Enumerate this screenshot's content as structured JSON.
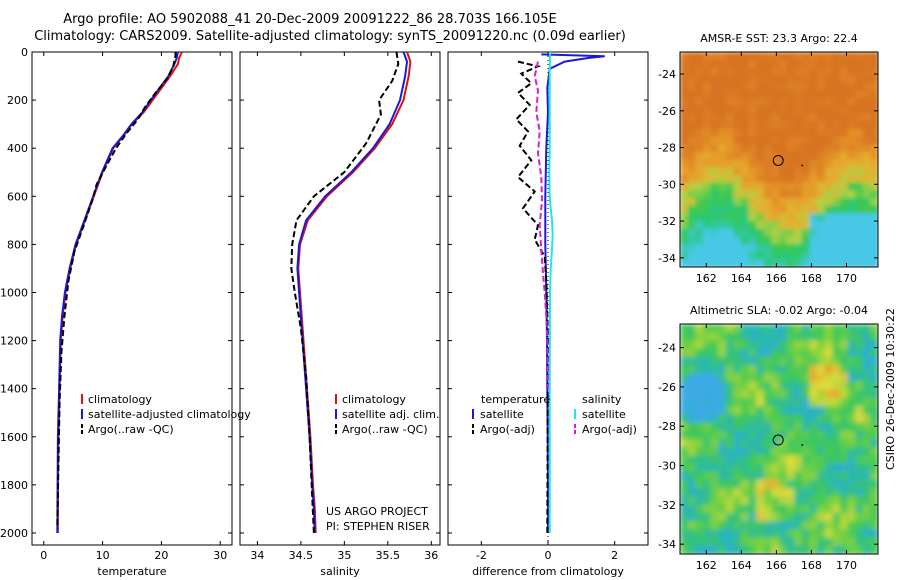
{
  "title": {
    "line1": "Argo profile: AO 5902088_41 20-Dec-2009 20091222_86 28.703S 166.105E",
    "line2": "Climatology: CARS2009. Satellite-adjusted climatology: synTS_20091220.nc (0.09d earlier)"
  },
  "footer": {
    "project": "US ARGO PROJECT",
    "pi": "PI: STEPHEN RISER",
    "stamp": "CSIRO 26-Dec-2009 10:30:22"
  },
  "colors": {
    "red": "#dd1111",
    "blue": "#1a1ad6",
    "black": "#000000",
    "cyan": "#22e4ec",
    "magenta": "#d41fd4"
  },
  "chart_data": [
    {
      "id": "temperature",
      "type": "line",
      "xlabel": "temperature",
      "ylabel": "",
      "xlim": [
        -2,
        32
      ],
      "ylim": [
        2050,
        0
      ],
      "xticks": [
        0,
        10,
        20,
        30
      ],
      "yticks": [
        0,
        200,
        400,
        600,
        800,
        1000,
        1200,
        1400,
        1600,
        1800,
        2000
      ],
      "legend": {
        "position": "lower-center",
        "labels": [
          "climatology",
          "satellite-adjusted climatology",
          "Argo(..raw -QC)"
        ]
      },
      "series": [
        {
          "name": "climatology",
          "color": "red",
          "dash": "",
          "x": [
            23.5,
            23.0,
            22.8,
            21.5,
            20.0,
            18.5,
            17.0,
            15.0,
            13.5,
            11.8,
            10.0,
            8.5,
            7.0,
            5.5,
            4.5,
            3.7,
            3.2,
            2.9,
            2.7,
            2.5,
            2.4,
            2.4
          ],
          "depth": [
            0,
            25,
            50,
            100,
            150,
            200,
            250,
            300,
            350,
            400,
            500,
            600,
            700,
            800,
            900,
            1000,
            1100,
            1200,
            1400,
            1600,
            1800,
            2000
          ]
        },
        {
          "name": "satellite-adjusted climatology",
          "color": "blue",
          "dash": "",
          "x": [
            22.8,
            22.6,
            22.2,
            21.2,
            19.7,
            18.2,
            16.8,
            14.9,
            13.4,
            11.7,
            9.9,
            8.4,
            6.9,
            5.4,
            4.4,
            3.6,
            3.1,
            2.8,
            2.6,
            2.4,
            2.35,
            2.3
          ],
          "depth": [
            0,
            25,
            50,
            100,
            150,
            200,
            250,
            300,
            350,
            400,
            500,
            600,
            700,
            800,
            900,
            1000,
            1100,
            1200,
            1400,
            1600,
            1800,
            2000
          ]
        },
        {
          "name": "Argo(..raw -QC)",
          "color": "black",
          "dash": "6,3",
          "x": [
            22.4,
            22.4,
            22.3,
            22.0,
            21.0,
            19.0,
            17.2,
            16.0,
            14.0,
            12.3,
            10.5,
            9.0,
            8.2,
            6.8,
            5.2,
            4.2,
            3.5,
            3.0,
            2.7,
            2.5,
            2.3
          ],
          "depth": [
            0,
            15,
            30,
            60,
            110,
            170,
            230,
            280,
            340,
            400,
            480,
            550,
            620,
            720,
            830,
            950,
            1100,
            1250,
            1450,
            1700,
            1980
          ]
        }
      ]
    },
    {
      "id": "salinity",
      "type": "line",
      "xlabel": "salinity",
      "ylabel": "",
      "xlim": [
        33.8,
        36.1
      ],
      "ylim": [
        2050,
        0
      ],
      "xticks": [
        34,
        34.5,
        35,
        35.5,
        36
      ],
      "legend": {
        "position": "lower-right",
        "labels": [
          "climatology",
          "satellite adj. clim.",
          "Argo(..raw -QC)"
        ]
      },
      "series": [
        {
          "name": "climatology",
          "color": "red",
          "dash": "",
          "x": [
            35.72,
            35.76,
            35.74,
            35.68,
            35.55,
            35.35,
            35.1,
            34.8,
            34.58,
            34.49,
            34.47,
            34.49,
            34.53,
            34.57,
            34.61,
            34.64,
            34.66,
            34.67
          ],
          "depth": [
            0,
            40,
            100,
            200,
            300,
            400,
            500,
            600,
            700,
            800,
            900,
            1000,
            1200,
            1400,
            1600,
            1800,
            1900,
            2000
          ]
        },
        {
          "name": "satellite adj. clim.",
          "color": "blue",
          "dash": "",
          "x": [
            35.68,
            35.72,
            35.7,
            35.64,
            35.52,
            35.33,
            35.08,
            34.78,
            34.56,
            34.48,
            34.46,
            34.48,
            34.52,
            34.56,
            34.6,
            34.63,
            34.65,
            34.66
          ],
          "depth": [
            0,
            40,
            100,
            200,
            300,
            400,
            500,
            600,
            700,
            800,
            900,
            1000,
            1200,
            1400,
            1600,
            1800,
            1900,
            2000
          ]
        },
        {
          "name": "Argo(..raw -QC)",
          "color": "black",
          "dash": "6,3",
          "x": [
            35.6,
            35.62,
            35.55,
            35.4,
            35.42,
            35.25,
            35.0,
            34.65,
            34.45,
            34.4,
            34.39,
            34.43,
            34.5,
            34.56,
            34.6,
            34.63,
            34.65
          ],
          "depth": [
            0,
            50,
            120,
            200,
            260,
            380,
            500,
            600,
            700,
            800,
            900,
            1000,
            1150,
            1350,
            1600,
            1850,
            2000
          ]
        }
      ]
    },
    {
      "id": "difference",
      "type": "line",
      "xlabel": "difference from climatology",
      "ylabel": "",
      "xlim": [
        -3.0,
        3.0
      ],
      "ylim": [
        2050,
        0
      ],
      "xticks": [
        -2,
        0,
        2
      ],
      "legend": {
        "position": "lower-center",
        "groups": [
          "temperature",
          "salinity"
        ],
        "labels": [
          "satellite",
          "Argo(-adj)",
          "satellite",
          "Argo(-adj)"
        ]
      },
      "series": [
        {
          "name": "temperature satellite",
          "color": "blue",
          "dash": "",
          "x": [
            -0.2,
            1.7,
            1.2,
            0.5,
            0.05,
            -0.02,
            0.0,
            -0.05,
            -0.08,
            -0.08,
            -0.05,
            -0.03,
            -0.02,
            -0.01,
            0.0,
            0.0
          ],
          "depth": [
            10,
            18,
            25,
            40,
            70,
            150,
            250,
            400,
            600,
            800,
            1000,
            1200,
            1400,
            1600,
            1800,
            2000
          ]
        },
        {
          "name": "temperature Argo(-adj)",
          "color": "black",
          "dash": "6,3",
          "x": [
            -0.9,
            -0.3,
            -0.8,
            -0.5,
            -0.9,
            -0.55,
            -0.95,
            -0.6,
            -0.85,
            -0.5,
            -0.9,
            -0.4,
            -0.75,
            -0.3,
            -0.4,
            -0.1,
            -0.05,
            0.0,
            -0.02
          ],
          "depth": [
            40,
            60,
            90,
            130,
            170,
            220,
            280,
            330,
            390,
            450,
            520,
            580,
            650,
            720,
            780,
            850,
            950,
            1200,
            2000
          ]
        },
        {
          "name": "salinity satellite",
          "color": "cyan",
          "dash": "",
          "x": [
            0.06,
            0.05,
            0.05,
            0.05,
            0.05,
            0.04,
            0.05,
            0.08,
            0.12,
            0.14,
            0.12,
            0.08,
            0.06,
            0.05,
            0.05,
            0.05
          ],
          "depth": [
            0,
            100,
            200,
            300,
            400,
            500,
            600,
            650,
            700,
            760,
            820,
            900,
            1000,
            1400,
            1800,
            2000
          ]
        },
        {
          "name": "salinity Argo(-adj)",
          "color": "magenta",
          "dash": "6,3",
          "x": [
            -0.3,
            -0.4,
            -0.3,
            -0.35,
            -0.25,
            -0.3,
            -0.2,
            -0.18,
            -0.25,
            -0.2,
            -0.15,
            -0.1,
            -0.05,
            -0.02,
            0.0
          ],
          "depth": [
            40,
            100,
            160,
            250,
            330,
            420,
            520,
            620,
            720,
            820,
            920,
            1000,
            1100,
            1200,
            1400
          ]
        }
      ]
    },
    {
      "id": "sst-map",
      "type": "heatmap",
      "title": "AMSR-E SST: 23.3 Argo: 22.4",
      "xlim": [
        160.5,
        171.8
      ],
      "ylim": [
        -34.5,
        -22.8
      ],
      "xticks": [
        162,
        164,
        166,
        168,
        170
      ],
      "yticks": [
        -24,
        -26,
        -28,
        -30,
        -32,
        -34
      ],
      "marker": {
        "lon": 166.105,
        "lat": -28.703
      }
    },
    {
      "id": "sla-map",
      "type": "heatmap",
      "title": "Altimetric SLA: -0.02 Argo: -0.04",
      "xlim": [
        160.5,
        171.8
      ],
      "ylim": [
        -34.5,
        -22.8
      ],
      "xticks": [
        162,
        164,
        166,
        168,
        170
      ],
      "yticks": [
        -24,
        -26,
        -28,
        -30,
        -32,
        -34
      ],
      "marker": {
        "lon": 166.105,
        "lat": -28.703
      }
    }
  ]
}
